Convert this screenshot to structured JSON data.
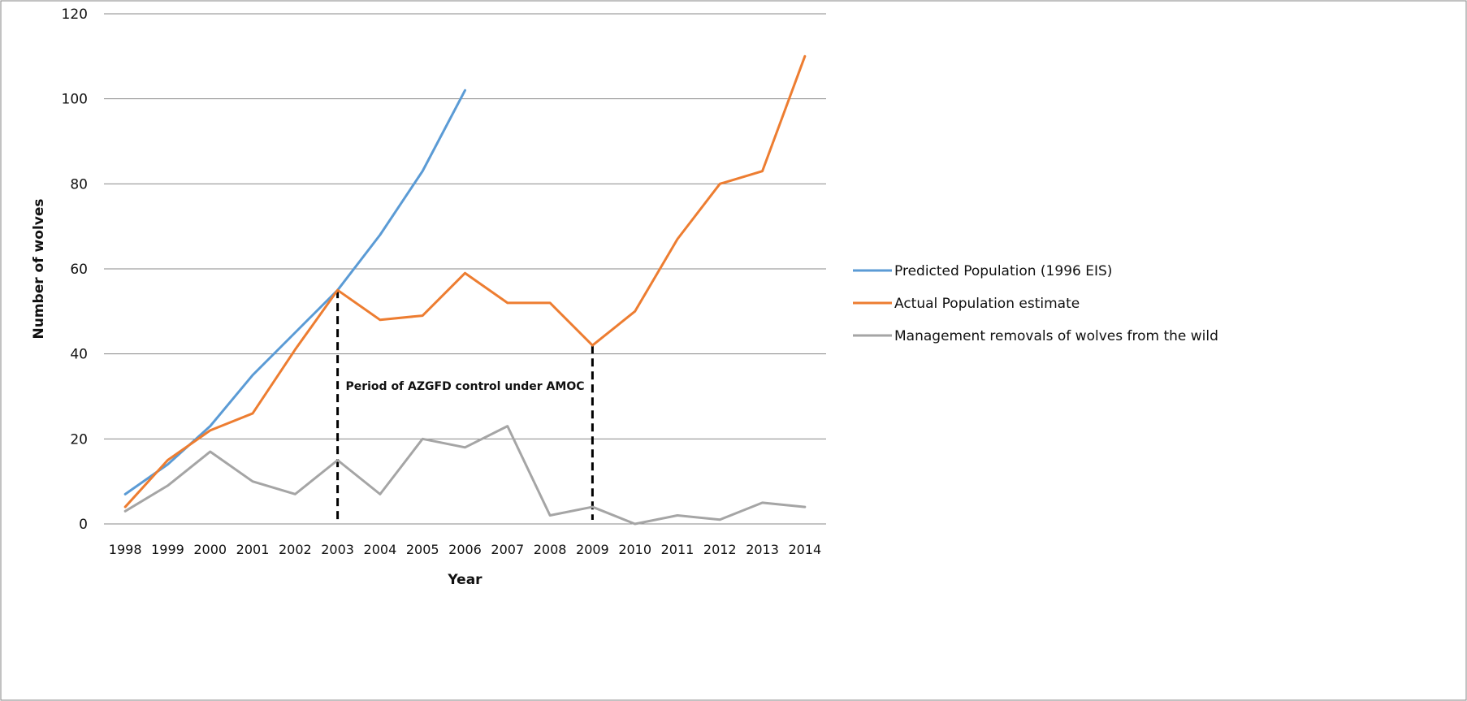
{
  "chart_data": {
    "type": "line",
    "xlabel": "Year",
    "ylabel": "Number of wolves",
    "ylim": [
      0,
      120
    ],
    "yticks": [
      0,
      20,
      40,
      60,
      80,
      100,
      120
    ],
    "grid": "horizontal",
    "legend_position": "right",
    "categories": [
      "1998",
      "1999",
      "2000",
      "2001",
      "2002",
      "2003",
      "2004",
      "2005",
      "2006",
      "2007",
      "2008",
      "2009",
      "2010",
      "2011",
      "2012",
      "2013",
      "2014"
    ],
    "series": [
      {
        "name": "Predicted Population (1996 EIS)",
        "color": "#5b9bd5",
        "values": [
          7,
          14,
          23,
          35,
          45,
          55,
          68,
          83,
          102,
          null,
          null,
          null,
          null,
          null,
          null,
          null,
          null
        ]
      },
      {
        "name": "Actual Population estimate",
        "color": "#ed7d31",
        "values": [
          4,
          15,
          22,
          26,
          41,
          55,
          48,
          49,
          59,
          52,
          52,
          42,
          50,
          67,
          80,
          83,
          110
        ]
      },
      {
        "name": "Management removals of wolves from the wild",
        "color": "#a5a5a5",
        "values": [
          3,
          9,
          17,
          10,
          7,
          15,
          7,
          20,
          18,
          23,
          2,
          4,
          0,
          2,
          1,
          5,
          4
        ]
      }
    ],
    "annotations": [
      {
        "text": "Period of AZGFD control under AMOC",
        "from": "2003",
        "to": "2009",
        "style": "dashed-vertical-lines"
      }
    ]
  }
}
